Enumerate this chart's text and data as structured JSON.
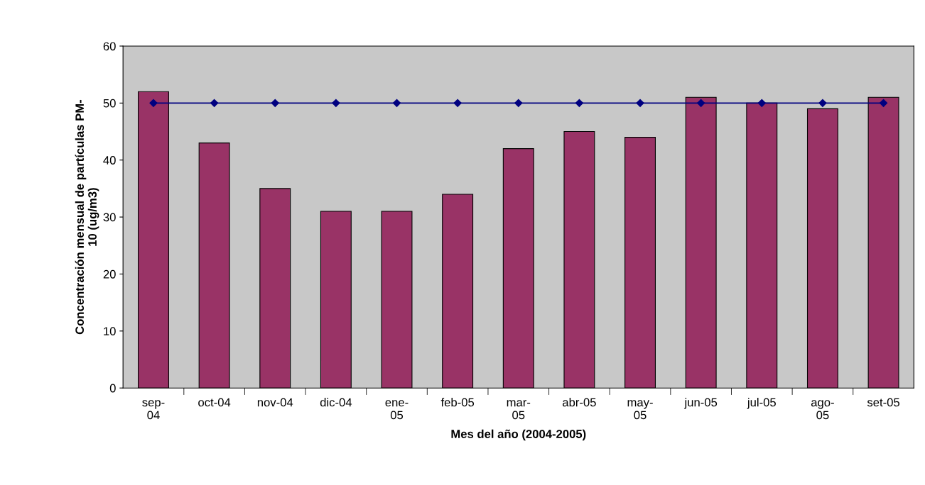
{
  "chart_data": {
    "type": "bar",
    "categories": [
      "sep-\n04",
      "oct-04",
      "nov-04",
      "dic-04",
      "ene-\n05",
      "feb-05",
      "mar-\n05",
      "abr-05",
      "may-\n05",
      "jun-05",
      "jul-05",
      "ago-\n05",
      "set-05"
    ],
    "series": [
      {
        "color": "#993366",
        "values": [
          52,
          43,
          35,
          31,
          31,
          34,
          42,
          45,
          44,
          51,
          50,
          49,
          51
        ]
      },
      {
        "type": "line",
        "color": "#000080",
        "marker": "diamond",
        "values": [
          50,
          50,
          50,
          50,
          50,
          50,
          50,
          50,
          50,
          50,
          50,
          50,
          50
        ]
      }
    ],
    "xlabel": "Mes del año (2004-2005)",
    "ylabel": "Concentración mensual de partículas PM-\n10 (ug/m3)",
    "ylim": [
      0,
      60
    ],
    "yticks": [
      0,
      10,
      20,
      30,
      40,
      50,
      60
    ],
    "grid": false,
    "legend": false
  }
}
